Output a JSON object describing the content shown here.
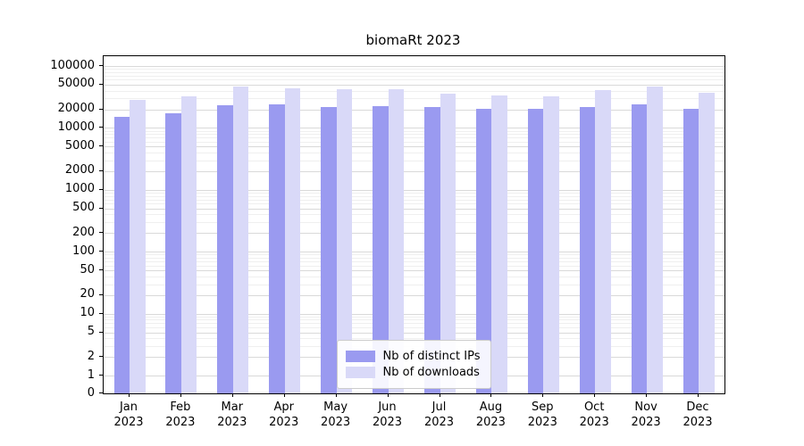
{
  "title": "biomaRt 2023",
  "chart_data": {
    "type": "bar",
    "categories": [
      "Jan",
      "Feb",
      "Mar",
      "Apr",
      "May",
      "Jun",
      "Jul",
      "Aug",
      "Sep",
      "Oct",
      "Nov",
      "Dec"
    ],
    "year": "2023",
    "series": [
      {
        "name": "Nb of distinct IPs",
        "color": "#9a9af0",
        "values": [
          15000,
          17500,
          23500,
          24000,
          22000,
          22500,
          21500,
          20500,
          20500,
          22000,
          24000,
          20500
        ]
      },
      {
        "name": "Nb of downloads",
        "color": "#d9d9f8",
        "values": [
          28000,
          32000,
          46000,
          44000,
          42000,
          42000,
          36000,
          33500,
          32500,
          41000,
          46000,
          37000
        ]
      }
    ],
    "yticks": [
      0,
      1,
      2,
      5,
      10,
      20,
      50,
      100,
      200,
      500,
      1000,
      2000,
      5000,
      10000,
      20000,
      50000,
      100000
    ],
    "ylim": [
      0,
      140000
    ],
    "yscale": "log",
    "grid": true,
    "legend_position": "lower-center-inside"
  }
}
